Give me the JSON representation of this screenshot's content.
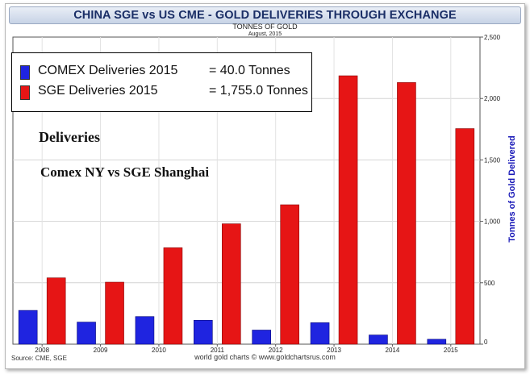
{
  "colors": {
    "comex": "#1f24e0",
    "sge": "#e61515",
    "ylabel": "#1a1ab8",
    "title": "#1a2e66"
  },
  "annotations": {
    "line1": "Deliveries",
    "line2": "Comex NY vs SGE Shanghai"
  },
  "legend_values": {
    "comex": "=     40.0 Tonnes",
    "sge": "= 1,755.0 Tonnes"
  },
  "footer": {
    "source": "Source: CME, SGE",
    "credit": "world gold charts © www.goldchartsrus.com"
  },
  "chart_data": {
    "type": "bar",
    "title": "CHINA SGE vs US CME - GOLD DELIVERIES THROUGH EXCHANGE",
    "subtitle": "TONNES OF GOLD",
    "date": "August, 2015",
    "xlabel": "",
    "ylabel": "Tonnes of Gold Delivered",
    "ylim": [
      0,
      2500
    ],
    "yticks": [
      "0",
      "500",
      "1,000",
      "1,500",
      "2,000",
      "2,500"
    ],
    "ytick_values": [
      0,
      500,
      1000,
      1500,
      2000,
      2500
    ],
    "grid": true,
    "y_axis_side": "right",
    "legend_placement": "top-left",
    "categories": [
      "2008",
      "2009",
      "2010",
      "2011",
      "2012",
      "2013",
      "2014",
      "2015"
    ],
    "series": [
      {
        "name": "COMEX Deliveries 2015",
        "values": [
          275,
          180,
          225,
          195,
          115,
          175,
          75,
          40
        ]
      },
      {
        "name": "SGE Deliveries 2015",
        "values": [
          540,
          505,
          785,
          980,
          1135,
          2185,
          2130,
          1755
        ]
      }
    ]
  }
}
